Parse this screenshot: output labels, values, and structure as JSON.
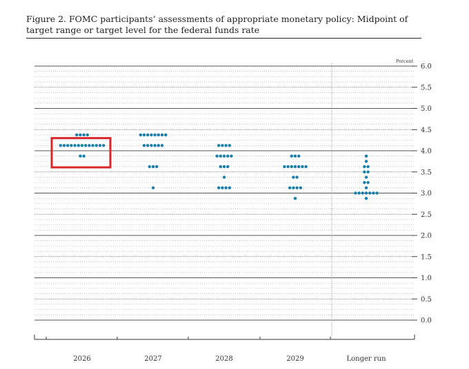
{
  "figure": {
    "title": "Figure 2. FOMC participants’ assessments of appropriate monetary policy: Midpoint of target range or target level for the federal funds rate"
  },
  "chart_data": {
    "type": "scatter",
    "unit_label": "Percent",
    "categories": [
      "2026",
      "2027",
      "2028",
      "2029",
      "Longer run"
    ],
    "ylim": [
      0.0,
      6.0
    ],
    "yticks": [
      "0.0",
      "0.5",
      "1.0",
      "1.5",
      "2.0",
      "2.5",
      "3.0",
      "3.5",
      "4.0",
      "4.5",
      "5.0",
      "5.5",
      "6.0"
    ],
    "dot_plot": [
      {
        "category": "2026",
        "dots": [
          {
            "rate": 4.375,
            "count": 4
          },
          {
            "rate": 4.125,
            "count": 13
          },
          {
            "rate": 3.875,
            "count": 2
          }
        ]
      },
      {
        "category": "2027",
        "dots": [
          {
            "rate": 4.375,
            "count": 8
          },
          {
            "rate": 4.125,
            "count": 6
          },
          {
            "rate": 3.625,
            "count": 3
          },
          {
            "rate": 3.125,
            "count": 1
          }
        ]
      },
      {
        "category": "2028",
        "dots": [
          {
            "rate": 4.125,
            "count": 4
          },
          {
            "rate": 3.875,
            "count": 5
          },
          {
            "rate": 3.625,
            "count": 3
          },
          {
            "rate": 3.375,
            "count": 1
          },
          {
            "rate": 3.125,
            "count": 4
          }
        ]
      },
      {
        "category": "2029",
        "dots": [
          {
            "rate": 3.875,
            "count": 3
          },
          {
            "rate": 3.625,
            "count": 7
          },
          {
            "rate": 3.375,
            "count": 2
          },
          {
            "rate": 3.125,
            "count": 4
          },
          {
            "rate": 2.875,
            "count": 1
          }
        ]
      },
      {
        "category": "Longer run",
        "dots": [
          {
            "rate": 3.875,
            "count": 1
          },
          {
            "rate": 3.75,
            "count": 1
          },
          {
            "rate": 3.625,
            "count": 2
          },
          {
            "rate": 3.5,
            "count": 2
          },
          {
            "rate": 3.375,
            "count": 1
          },
          {
            "rate": 3.25,
            "count": 2
          },
          {
            "rate": 3.125,
            "count": 1
          },
          {
            "rate": 3.0,
            "count": 7
          },
          {
            "rate": 2.875,
            "count": 1
          }
        ]
      }
    ],
    "highlight": {
      "category": "2026",
      "color": "#d9262b"
    },
    "grid": true,
    "dot_color": "#1a7fa8"
  }
}
